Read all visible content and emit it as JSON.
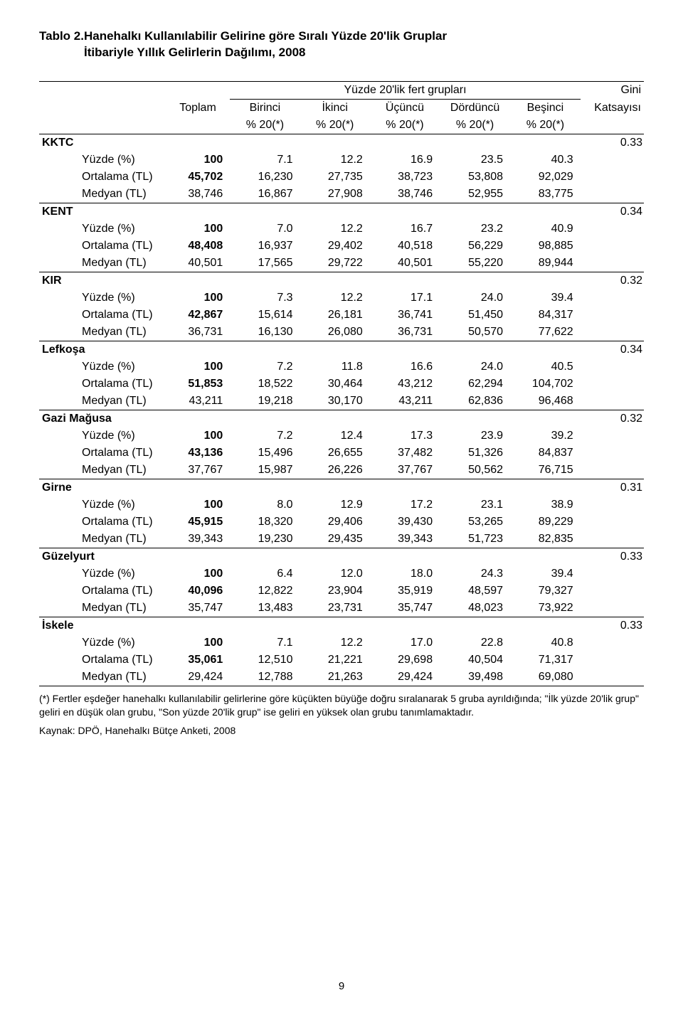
{
  "title_prefix": "Tablo 2.  ",
  "title_line1": "Hanehalkı Kullanılabilir Gelirine göre Sıralı Yüzde 20'lik Gruplar",
  "title_line2": "İtibariyle Yıllık Gelirlerin Dağılımı, 2008",
  "header": {
    "yuzde_group": "Yüzde 20'lik fert grupları",
    "gini": "Gini",
    "katsayisi": "Katsayısı",
    "toplam": "Toplam",
    "cols": [
      "Birinci",
      "İkinci",
      "Üçüncü",
      "Dördüncü",
      "Beşinci"
    ],
    "pct": "% 20(*)"
  },
  "row_labels": {
    "yuzde": "Yüzde (%)",
    "ortalama": "Ortalama (TL)",
    "medyan": "Medyan (TL)"
  },
  "regions": [
    {
      "name": "KKTC",
      "gini": "0.33",
      "yuzde": [
        "100",
        "7.1",
        "12.2",
        "16.9",
        "23.5",
        "40.3"
      ],
      "ortalama": [
        "45,702",
        "16,230",
        "27,735",
        "38,723",
        "53,808",
        "92,029"
      ],
      "medyan": [
        "38,746",
        "16,867",
        "27,908",
        "38,746",
        "52,955",
        "83,775"
      ]
    },
    {
      "name": "KENT",
      "gini": "0.34",
      "yuzde": [
        "100",
        "7.0",
        "12.2",
        "16.7",
        "23.2",
        "40.9"
      ],
      "ortalama": [
        "48,408",
        "16,937",
        "29,402",
        "40,518",
        "56,229",
        "98,885"
      ],
      "medyan": [
        "40,501",
        "17,565",
        "29,722",
        "40,501",
        "55,220",
        "89,944"
      ]
    },
    {
      "name": "KIR",
      "gini": "0.32",
      "yuzde": [
        "100",
        "7.3",
        "12.2",
        "17.1",
        "24.0",
        "39.4"
      ],
      "ortalama": [
        "42,867",
        "15,614",
        "26,181",
        "36,741",
        "51,450",
        "84,317"
      ],
      "medyan": [
        "36,731",
        "16,130",
        "26,080",
        "36,731",
        "50,570",
        "77,622"
      ]
    },
    {
      "name": "Lefkoşa",
      "gini": "0.34",
      "yuzde": [
        "100",
        "7.2",
        "11.8",
        "16.6",
        "24.0",
        "40.5"
      ],
      "ortalama": [
        "51,853",
        "18,522",
        "30,464",
        "43,212",
        "62,294",
        "104,702"
      ],
      "medyan": [
        "43,211",
        "19,218",
        "30,170",
        "43,211",
        "62,836",
        "96,468"
      ]
    },
    {
      "name": "Gazi Mağusa",
      "gini": "0.32",
      "yuzde": [
        "100",
        "7.2",
        "12.4",
        "17.3",
        "23.9",
        "39.2"
      ],
      "ortalama": [
        "43,136",
        "15,496",
        "26,655",
        "37,482",
        "51,326",
        "84,837"
      ],
      "medyan": [
        "37,767",
        "15,987",
        "26,226",
        "37,767",
        "50,562",
        "76,715"
      ]
    },
    {
      "name": "Girne",
      "gini": "0.31",
      "yuzde": [
        "100",
        "8.0",
        "12.9",
        "17.2",
        "23.1",
        "38.9"
      ],
      "ortalama": [
        "45,915",
        "18,320",
        "29,406",
        "39,430",
        "53,265",
        "89,229"
      ],
      "medyan": [
        "39,343",
        "19,230",
        "29,435",
        "39,343",
        "51,723",
        "82,835"
      ]
    },
    {
      "name": "Güzelyurt",
      "gini": "0.33",
      "yuzde": [
        "100",
        "6.4",
        "12.0",
        "18.0",
        "24.3",
        "39.4"
      ],
      "ortalama": [
        "40,096",
        "12,822",
        "23,904",
        "35,919",
        "48,597",
        "79,327"
      ],
      "medyan": [
        "35,747",
        "13,483",
        "23,731",
        "35,747",
        "48,023",
        "73,922"
      ]
    },
    {
      "name": "İskele",
      "gini": "0.33",
      "yuzde": [
        "100",
        "7.1",
        "12.2",
        "17.0",
        "22.8",
        "40.8"
      ],
      "ortalama": [
        "35,061",
        "12,510",
        "21,221",
        "29,698",
        "40,504",
        "71,317"
      ],
      "medyan": [
        "29,424",
        "12,788",
        "21,263",
        "29,424",
        "39,498",
        "69,080"
      ]
    }
  ],
  "footnote": "(*) Fertler eşdeğer hanehalkı kullanılabilir gelirlerine göre küçükten büyüğe doğru sıralanarak 5 gruba ayrıldığında;  \"İlk yüzde 20'lik grup\"  geliri en düşük olan grubu, \"Son yüzde 20'lik grup\" ise geliri en yüksek olan grubu tanımlamaktadır.",
  "source": "Kaynak: DPÖ, Hanehalkı Bütçe Anketi,  2008",
  "pagenum": "9"
}
